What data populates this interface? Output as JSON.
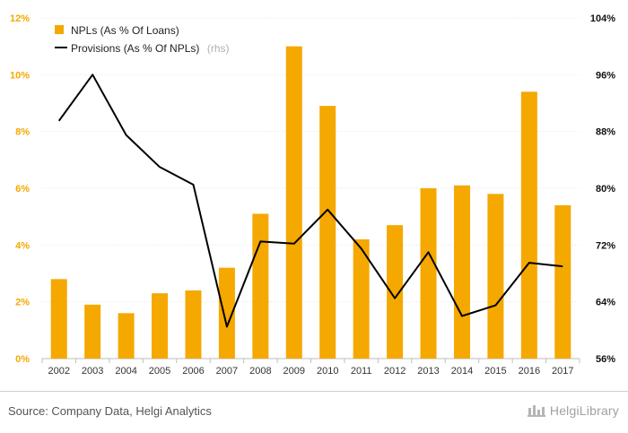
{
  "chart_data": {
    "type": "bar",
    "categories": [
      "2002",
      "2003",
      "2004",
      "2005",
      "2006",
      "2007",
      "2008",
      "2009",
      "2010",
      "2011",
      "2012",
      "2013",
      "2014",
      "2015",
      "2016",
      "2017"
    ],
    "series": [
      {
        "name": "NPLs (As % Of Loans)",
        "type": "bar",
        "axis": "left",
        "color": "#f5a800",
        "values": [
          2.8,
          1.9,
          1.6,
          2.3,
          2.4,
          3.2,
          5.1,
          11.0,
          8.9,
          4.2,
          4.7,
          6.0,
          6.1,
          5.8,
          9.4,
          5.4
        ]
      },
      {
        "name": "Provisions (As % Of NPLs)",
        "name_suffix": "(rhs)",
        "type": "line",
        "axis": "right",
        "color": "#000000",
        "values": [
          89.5,
          96.0,
          87.5,
          83.0,
          80.5,
          60.5,
          72.5,
          72.2,
          77.0,
          71.5,
          64.5,
          71.0,
          62.0,
          63.5,
          69.5,
          69.0
        ]
      }
    ],
    "y_left": {
      "ylim": [
        0,
        12
      ],
      "ticks": [
        0,
        2,
        4,
        6,
        8,
        10,
        12
      ],
      "tick_labels": [
        "0%",
        "2%",
        "4%",
        "6%",
        "8%",
        "10%",
        "12%"
      ]
    },
    "y_right": {
      "ylim": [
        56,
        104
      ],
      "ticks": [
        56,
        64,
        72,
        80,
        88,
        96,
        104
      ],
      "tick_labels": [
        "56%",
        "64%",
        "72%",
        "80%",
        "88%",
        "96%",
        "104%"
      ]
    },
    "grid": true,
    "legend": "top-left"
  },
  "footer": {
    "source": "Source: Company Data, Helgi Analytics",
    "logo_text": "HelgiLibrary"
  }
}
